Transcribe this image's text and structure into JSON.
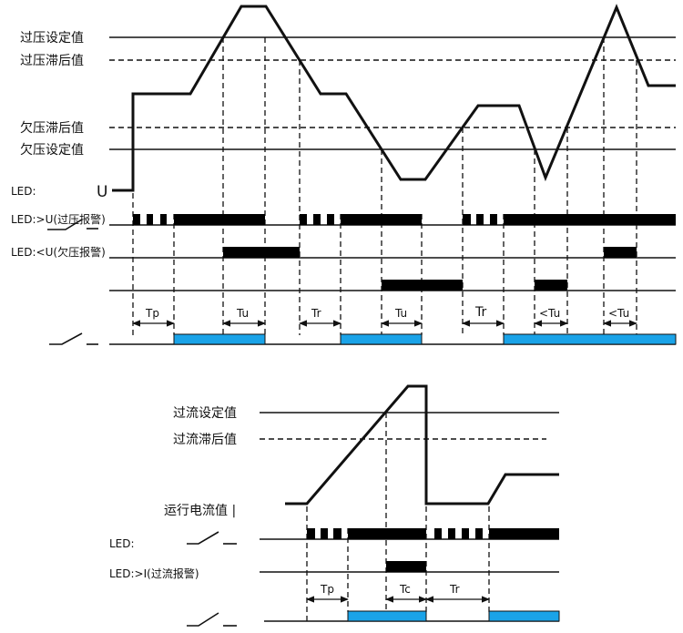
{
  "voltage_diagram": {
    "levels": {
      "overvoltage_setpoint": "过压设定值",
      "overvoltage_hysteresis": "过压滞后值",
      "undervoltage_hysteresis": "欠压滞后值",
      "undervoltage_setpoint": "欠压设定值"
    },
    "signal_label": "U",
    "led_label": "LED:",
    "led_over_label": "LED:>U(过压报警)",
    "led_under_label": "LED:<U(欠压报警)",
    "intervals": [
      "Tp",
      "Tu",
      "Tr",
      "Tu",
      "Tr",
      "<Tu",
      "<Tu"
    ]
  },
  "current_diagram": {
    "levels": {
      "overcurrent_setpoint": "过流设定值",
      "overcurrent_hysteresis": "过流滞后值",
      "running_current": "运行电流值 |"
    },
    "led_label": "LED:",
    "led_over_label": "LED:>I(过流报警)",
    "intervals": [
      "Tp",
      "Tc",
      "Tr"
    ]
  },
  "colors": {
    "relay_on": "#1aa3e8",
    "line": "#111111"
  }
}
